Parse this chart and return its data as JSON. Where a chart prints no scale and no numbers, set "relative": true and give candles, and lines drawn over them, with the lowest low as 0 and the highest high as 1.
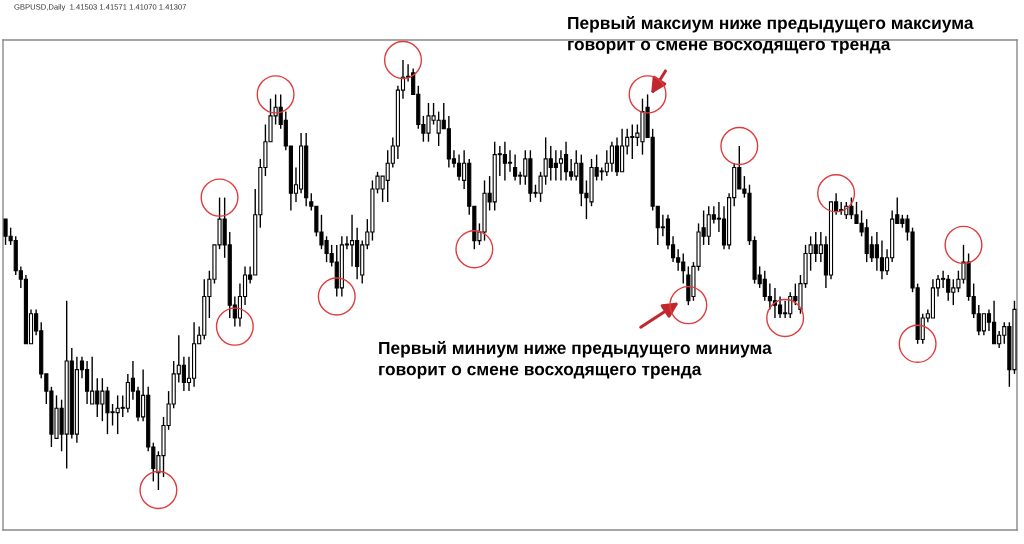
{
  "chart_data": {
    "type": "candlestick",
    "title": "GBPUSD,Daily  1.41503 1.41571 1.41070 1.41307",
    "relative": true,
    "categories": [
      null,
      null,
      null,
      null,
      null,
      null,
      null,
      null,
      null,
      null,
      null,
      null,
      null,
      null,
      null,
      null,
      null,
      null,
      null,
      null,
      null,
      null,
      null,
      null,
      null,
      null,
      null,
      null,
      null,
      null,
      null,
      null,
      null,
      null,
      null,
      null,
      null,
      null,
      null,
      null,
      null,
      null,
      null,
      null,
      null,
      null,
      null,
      null,
      null,
      null,
      null,
      null,
      null,
      null,
      null,
      null,
      null,
      null,
      null,
      null,
      null,
      null,
      null,
      null,
      null,
      null,
      null,
      null,
      null,
      null,
      null,
      null,
      null,
      null,
      null,
      null,
      null,
      null,
      null,
      null,
      null,
      null,
      null,
      null,
      null,
      null,
      null,
      null,
      null,
      null,
      null,
      null,
      null,
      null,
      null,
      null,
      null,
      null,
      null,
      null,
      null,
      null,
      null,
      null,
      null,
      null,
      null,
      null,
      null,
      null,
      null,
      null,
      null,
      null,
      null,
      null,
      null,
      null,
      null,
      null,
      null,
      null,
      null,
      null,
      null,
      null,
      null,
      null,
      null,
      null,
      null,
      null,
      null,
      null,
      null,
      null,
      null,
      null,
      null,
      null,
      null,
      null,
      null,
      null,
      null,
      null,
      null,
      null,
      null,
      null,
      null,
      null,
      null,
      null,
      null,
      null,
      null,
      null,
      null,
      null,
      null,
      null,
      null,
      null,
      null,
      null,
      null,
      null,
      null,
      null,
      null,
      null,
      null,
      null,
      null,
      null,
      null,
      null,
      null,
      null,
      null,
      null,
      null,
      null,
      null,
      null,
      null,
      null,
      null,
      null,
      null,
      null,
      null,
      null,
      null,
      null,
      null,
      null,
      null
    ],
    "ohlc": [
      [
        0.63,
        0.63,
        0.57,
        0.59
      ],
      [
        0.59,
        0.61,
        0.57,
        0.58
      ],
      [
        0.58,
        0.59,
        0.5,
        0.51
      ],
      [
        0.51,
        0.52,
        0.47,
        0.49
      ],
      [
        0.49,
        0.5,
        0.34,
        0.34
      ],
      [
        0.34,
        0.42,
        0.34,
        0.41
      ],
      [
        0.41,
        0.42,
        0.36,
        0.37
      ],
      [
        0.37,
        0.39,
        0.26,
        0.27
      ],
      [
        0.27,
        0.27,
        0.2,
        0.23
      ],
      [
        0.23,
        0.24,
        0.1,
        0.13
      ],
      [
        0.12,
        0.22,
        0.12,
        0.19
      ],
      [
        0.19,
        0.21,
        0.09,
        0.13
      ],
      [
        0.13,
        0.44,
        0.05,
        0.3
      ],
      [
        0.3,
        0.33,
        0.12,
        0.13
      ],
      [
        0.13,
        0.31,
        0.11,
        0.28
      ],
      [
        0.3,
        0.31,
        0.26,
        0.28
      ],
      [
        0.28,
        0.3,
        0.2,
        0.23
      ],
      [
        0.2,
        0.31,
        0.2,
        0.23
      ],
      [
        0.23,
        0.26,
        0.17,
        0.2
      ],
      [
        0.2,
        0.26,
        0.16,
        0.23
      ],
      [
        0.23,
        0.24,
        0.13,
        0.18
      ],
      [
        0.18,
        0.2,
        0.15,
        0.18
      ],
      [
        0.18,
        0.22,
        0.13,
        0.19
      ],
      [
        0.19,
        0.22,
        0.17,
        0.19
      ],
      [
        0.19,
        0.27,
        0.18,
        0.25
      ],
      [
        0.26,
        0.3,
        0.21,
        0.23
      ],
      [
        0.23,
        0.24,
        0.16,
        0.17
      ],
      [
        0.17,
        0.28,
        0.16,
        0.22
      ],
      [
        0.22,
        0.24,
        0.09,
        0.1
      ],
      [
        0.1,
        0.11,
        0.02,
        0.05
      ],
      [
        0.04,
        0.09,
        0.0,
        0.08
      ],
      [
        0.08,
        0.17,
        0.03,
        0.15
      ],
      [
        0.15,
        0.23,
        0.14,
        0.2
      ],
      [
        0.2,
        0.3,
        0.19,
        0.27
      ],
      [
        0.27,
        0.36,
        0.25,
        0.29
      ],
      [
        0.29,
        0.31,
        0.23,
        0.25
      ],
      [
        0.25,
        0.31,
        0.23,
        0.26
      ],
      [
        0.26,
        0.39,
        0.24,
        0.34
      ],
      [
        0.34,
        0.38,
        0.34,
        0.36
      ],
      [
        0.36,
        0.49,
        0.35,
        0.45
      ],
      [
        0.45,
        0.51,
        0.4,
        0.49
      ],
      [
        0.49,
        0.57,
        0.48,
        0.57
      ],
      [
        0.57,
        0.68,
        0.56,
        0.63
      ],
      [
        0.63,
        0.68,
        0.54,
        0.57
      ],
      [
        0.57,
        0.6,
        0.4,
        0.43
      ],
      [
        0.43,
        0.45,
        0.38,
        0.4
      ],
      [
        0.4,
        0.48,
        0.38,
        0.45
      ],
      [
        0.45,
        0.52,
        0.43,
        0.5
      ],
      [
        0.5,
        0.52,
        0.48,
        0.49
      ],
      [
        0.5,
        0.7,
        0.5,
        0.64
      ],
      [
        0.64,
        0.77,
        0.61,
        0.75
      ],
      [
        0.75,
        0.85,
        0.73,
        0.81
      ],
      [
        0.81,
        0.91,
        0.81,
        0.87
      ],
      [
        0.87,
        0.92,
        0.85,
        0.89
      ],
      [
        0.89,
        0.92,
        0.84,
        0.85
      ],
      [
        0.86,
        0.88,
        0.79,
        0.8
      ],
      [
        0.8,
        0.8,
        0.65,
        0.69
      ],
      [
        0.69,
        0.75,
        0.67,
        0.71
      ],
      [
        0.7,
        0.83,
        0.69,
        0.8
      ],
      [
        0.8,
        0.83,
        0.66,
        0.68
      ],
      [
        0.67,
        0.69,
        0.65,
        0.66
      ],
      [
        0.66,
        0.66,
        0.59,
        0.6
      ],
      [
        0.6,
        0.64,
        0.56,
        0.57
      ],
      [
        0.58,
        0.59,
        0.53,
        0.55
      ],
      [
        0.55,
        0.57,
        0.52,
        0.53
      ],
      [
        0.53,
        0.57,
        0.45,
        0.47
      ],
      [
        0.47,
        0.59,
        0.45,
        0.57
      ],
      [
        0.57,
        0.59,
        0.56,
        0.57
      ],
      [
        0.57,
        0.64,
        0.52,
        0.58
      ],
      [
        0.58,
        0.61,
        0.49,
        0.52
      ],
      [
        0.5,
        0.58,
        0.48,
        0.57
      ],
      [
        0.57,
        0.63,
        0.56,
        0.6
      ],
      [
        0.6,
        0.72,
        0.58,
        0.7
      ],
      [
        0.7,
        0.74,
        0.69,
        0.73
      ],
      [
        0.7,
        0.73,
        0.67,
        0.73
      ],
      [
        0.72,
        0.79,
        0.67,
        0.76
      ],
      [
        0.76,
        0.82,
        0.75,
        0.8
      ],
      [
        0.8,
        0.94,
        0.77,
        0.93
      ],
      [
        0.93,
        1.0,
        0.91,
        0.96
      ],
      [
        0.96,
        0.99,
        0.95,
        0.96
      ],
      [
        0.97,
        0.98,
        0.92,
        0.92
      ],
      [
        0.92,
        0.94,
        0.84,
        0.85
      ],
      [
        0.85,
        0.87,
        0.81,
        0.83
      ],
      [
        0.83,
        0.9,
        0.81,
        0.87
      ],
      [
        0.86,
        0.9,
        0.85,
        0.87
      ],
      [
        0.83,
        0.88,
        0.8,
        0.86
      ],
      [
        0.86,
        0.9,
        0.84,
        0.84
      ],
      [
        0.84,
        0.87,
        0.75,
        0.77
      ],
      [
        0.77,
        0.79,
        0.75,
        0.76
      ],
      [
        0.76,
        0.78,
        0.72,
        0.73
      ],
      [
        0.72,
        0.79,
        0.7,
        0.76
      ],
      [
        0.76,
        0.77,
        0.64,
        0.66
      ],
      [
        0.66,
        0.66,
        0.56,
        0.58
      ],
      [
        0.58,
        0.62,
        0.57,
        0.6
      ],
      [
        0.6,
        0.72,
        0.58,
        0.69
      ],
      [
        0.69,
        0.73,
        0.65,
        0.67
      ],
      [
        0.67,
        0.81,
        0.65,
        0.78
      ],
      [
        0.78,
        0.8,
        0.73,
        0.78
      ],
      [
        0.78,
        0.81,
        0.72,
        0.76
      ],
      [
        0.76,
        0.79,
        0.74,
        0.76
      ],
      [
        0.75,
        0.78,
        0.72,
        0.73
      ],
      [
        0.73,
        0.74,
        0.71,
        0.73
      ],
      [
        0.73,
        0.79,
        0.71,
        0.77
      ],
      [
        0.77,
        0.79,
        0.67,
        0.69
      ],
      [
        0.69,
        0.71,
        0.68,
        0.69
      ],
      [
        0.69,
        0.74,
        0.67,
        0.73
      ],
      [
        0.73,
        0.82,
        0.71,
        0.77
      ],
      [
        0.77,
        0.8,
        0.72,
        0.75
      ],
      [
        0.76,
        0.79,
        0.72,
        0.75
      ],
      [
        0.76,
        0.79,
        0.72,
        0.77
      ],
      [
        0.78,
        0.81,
        0.72,
        0.74
      ],
      [
        0.74,
        0.77,
        0.72,
        0.73
      ],
      [
        0.73,
        0.79,
        0.72,
        0.76
      ],
      [
        0.76,
        0.78,
        0.66,
        0.69
      ],
      [
        0.69,
        0.72,
        0.63,
        0.68
      ],
      [
        0.67,
        0.77,
        0.66,
        0.75
      ],
      [
        0.75,
        0.78,
        0.72,
        0.73
      ],
      [
        0.74,
        0.75,
        0.72,
        0.74
      ],
      [
        0.74,
        0.79,
        0.73,
        0.76
      ],
      [
        0.76,
        0.81,
        0.74,
        0.8
      ],
      [
        0.8,
        0.82,
        0.73,
        0.74
      ],
      [
        0.74,
        0.84,
        0.74,
        0.8
      ],
      [
        0.8,
        0.84,
        0.78,
        0.82
      ],
      [
        0.82,
        0.85,
        0.77,
        0.82
      ],
      [
        0.82,
        0.85,
        0.8,
        0.83
      ],
      [
        0.81,
        0.91,
        0.78,
        0.88
      ],
      [
        0.89,
        0.92,
        0.82,
        0.82
      ],
      [
        0.82,
        0.84,
        0.65,
        0.66
      ],
      [
        0.66,
        0.66,
        0.57,
        0.61
      ],
      [
        0.61,
        0.64,
        0.59,
        0.61
      ],
      [
        0.63,
        0.64,
        0.56,
        0.57
      ],
      [
        0.57,
        0.59,
        0.53,
        0.54
      ],
      [
        0.54,
        0.56,
        0.51,
        0.53
      ],
      [
        0.53,
        0.55,
        0.48,
        0.51
      ],
      [
        0.5,
        0.52,
        0.43,
        0.44
      ],
      [
        0.45,
        0.53,
        0.44,
        0.52
      ],
      [
        0.52,
        0.62,
        0.51,
        0.6
      ],
      [
        0.61,
        0.65,
        0.57,
        0.59
      ],
      [
        0.59,
        0.66,
        0.57,
        0.64
      ],
      [
        0.64,
        0.66,
        0.62,
        0.63
      ],
      [
        0.63,
        0.67,
        0.6,
        0.63
      ],
      [
        0.63,
        0.66,
        0.56,
        0.57
      ],
      [
        0.57,
        0.69,
        0.56,
        0.68
      ],
      [
        0.68,
        0.76,
        0.66,
        0.75
      ],
      [
        0.75,
        0.8,
        0.7,
        0.7
      ],
      [
        0.7,
        0.73,
        0.68,
        0.69
      ],
      [
        0.69,
        0.71,
        0.57,
        0.58
      ],
      [
        0.58,
        0.59,
        0.48,
        0.49
      ],
      [
        0.5,
        0.52,
        0.47,
        0.48
      ],
      [
        0.49,
        0.51,
        0.44,
        0.45
      ],
      [
        0.45,
        0.48,
        0.42,
        0.44
      ],
      [
        0.44,
        0.47,
        0.4,
        0.43
      ],
      [
        0.43,
        0.45,
        0.4,
        0.41
      ],
      [
        0.41,
        0.44,
        0.4,
        0.41
      ],
      [
        0.41,
        0.46,
        0.4,
        0.45
      ],
      [
        0.45,
        0.48,
        0.43,
        0.44
      ],
      [
        0.42,
        0.5,
        0.41,
        0.48
      ],
      [
        0.48,
        0.57,
        0.47,
        0.55
      ],
      [
        0.55,
        0.59,
        0.51,
        0.57
      ],
      [
        0.57,
        0.6,
        0.53,
        0.55
      ],
      [
        0.55,
        0.6,
        0.53,
        0.57
      ],
      [
        0.57,
        0.59,
        0.47,
        0.5
      ],
      [
        0.5,
        0.67,
        0.49,
        0.67
      ],
      [
        0.67,
        0.69,
        0.64,
        0.65
      ],
      [
        0.65,
        0.67,
        0.64,
        0.65
      ],
      [
        0.64,
        0.67,
        0.63,
        0.66
      ],
      [
        0.66,
        0.68,
        0.63,
        0.64
      ],
      [
        0.64,
        0.67,
        0.62,
        0.62
      ],
      [
        0.62,
        0.65,
        0.59,
        0.6
      ],
      [
        0.61,
        0.63,
        0.53,
        0.55
      ],
      [
        0.57,
        0.59,
        0.53,
        0.54
      ],
      [
        0.57,
        0.6,
        0.51,
        0.54
      ],
      [
        0.54,
        0.58,
        0.49,
        0.51
      ],
      [
        0.51,
        0.56,
        0.5,
        0.54
      ],
      [
        0.54,
        0.65,
        0.53,
        0.63
      ],
      [
        0.64,
        0.68,
        0.62,
        0.62
      ],
      [
        0.63,
        0.64,
        0.61,
        0.62
      ],
      [
        0.63,
        0.64,
        0.58,
        0.6
      ],
      [
        0.6,
        0.61,
        0.46,
        0.47
      ],
      [
        0.47,
        0.48,
        0.34,
        0.35
      ],
      [
        0.35,
        0.41,
        0.34,
        0.4
      ],
      [
        0.4,
        0.42,
        0.39,
        0.41
      ],
      [
        0.4,
        0.49,
        0.4,
        0.47
      ],
      [
        0.47,
        0.5,
        0.45,
        0.49
      ],
      [
        0.49,
        0.51,
        0.47,
        0.49
      ],
      [
        0.49,
        0.5,
        0.44,
        0.46
      ],
      [
        0.46,
        0.49,
        0.43,
        0.47
      ],
      [
        0.47,
        0.51,
        0.46,
        0.49
      ],
      [
        0.49,
        0.57,
        0.48,
        0.53
      ],
      [
        0.53,
        0.55,
        0.44,
        0.45
      ],
      [
        0.45,
        0.48,
        0.4,
        0.41
      ],
      [
        0.41,
        0.43,
        0.36,
        0.37
      ],
      [
        0.37,
        0.41,
        0.36,
        0.41
      ],
      [
        0.41,
        0.42,
        0.37,
        0.39
      ],
      [
        0.39,
        0.44,
        0.34,
        0.34
      ],
      [
        0.34,
        0.37,
        0.33,
        0.36
      ],
      [
        0.36,
        0.39,
        0.34,
        0.38
      ],
      [
        0.38,
        0.39,
        0.24,
        0.28
      ],
      [
        0.28,
        0.44,
        0.27,
        0.42
      ]
    ],
    "annotations": [
      "Первый максиум ниже предыдущего максиума\nговорит о смене восходящего тренда",
      "Первый миниум ниже предыдущего миниума\nговорит о смене восходящего тренда"
    ]
  }
}
